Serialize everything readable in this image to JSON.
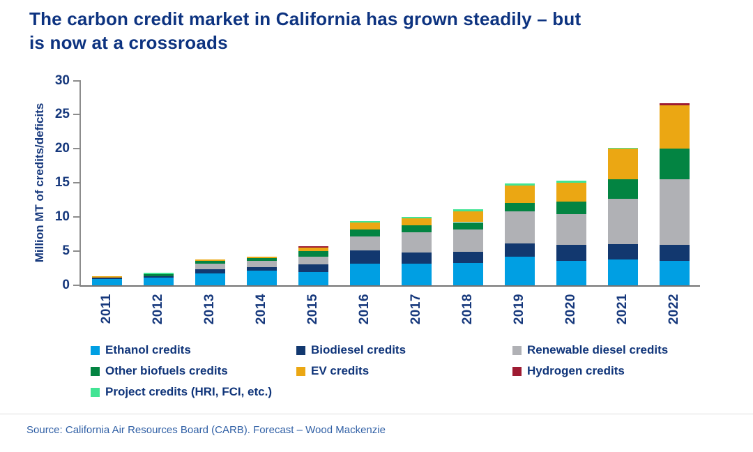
{
  "title": {
    "line1": "The carbon credit market in California has grown steadily – but",
    "line2": "is now at a crossroads",
    "full": "The carbon credit market in California has grown steadily – but is now at a crossroads"
  },
  "y_axis": {
    "label": "Million MT of credits/deficits",
    "ticks": [
      0,
      5,
      10,
      15,
      20,
      25,
      30
    ]
  },
  "source": "Source: California Air Resources Board (CARB). Forecast – Wood Mackenzie",
  "colors": {
    "title_text": "#0D3380",
    "axis_text": "#16387C",
    "legend_text": "#10357A",
    "source_text": "#2F5FA5",
    "axis_line": "#8C8C8C"
  },
  "legend": {
    "rows": [
      [
        {
          "label": "Ethanol credits",
          "series": "ethanol"
        },
        {
          "label": "Biodiesel credits",
          "series": "biodiesel"
        },
        {
          "label": "Renewable diesel credits",
          "series": "renewable_diesel"
        }
      ],
      [
        {
          "label": "Other biofuels credits",
          "series": "other_biofuels"
        },
        {
          "label": "EV credits",
          "series": "ev"
        },
        {
          "label": "Hydrogen credits",
          "series": "hydrogen"
        }
      ],
      [
        {
          "label": "Project credits (HRI, FCI, etc.)",
          "series": "project"
        }
      ]
    ]
  },
  "chart_data": {
    "type": "bar",
    "stacked": true,
    "title": "The carbon credit market in California has grown steadily – but is now at a crossroads",
    "xlabel": "",
    "ylabel": "Million MT of credits/deficits",
    "ylim": [
      0,
      30
    ],
    "grid": false,
    "legend_position": "bottom",
    "categories": [
      "2011",
      "2012",
      "2013",
      "2014",
      "2015",
      "2016",
      "2017",
      "2018",
      "2019",
      "2020",
      "2021",
      "2022"
    ],
    "series": [
      {
        "name": "Ethanol credits",
        "key": "ethanol",
        "color": "#009FE3",
        "values": [
          0.9,
          1.1,
          1.7,
          2.1,
          1.9,
          3.2,
          3.2,
          3.25,
          4.15,
          3.6,
          3.8,
          3.55
        ]
      },
      {
        "name": "Biodiesel credits",
        "key": "biodiesel",
        "color": "#12386F",
        "values": [
          0.2,
          0.2,
          0.65,
          0.6,
          1.2,
          1.9,
          1.65,
          1.7,
          1.95,
          2.3,
          2.25,
          2.4
        ]
      },
      {
        "name": "Renewable diesel credits",
        "key": "renewable_diesel",
        "color": "#B0B1B5",
        "values": [
          0,
          0,
          0.8,
          0.85,
          1.05,
          2.1,
          2.9,
          3.2,
          4.7,
          4.5,
          6.6,
          9.6
        ]
      },
      {
        "name": "Other biofuels credits",
        "key": "other_biofuels",
        "color": "#038442",
        "values": [
          0,
          0.3,
          0.45,
          0.4,
          0.9,
          0.95,
          1.0,
          1.1,
          1.3,
          1.85,
          2.85,
          4.5
        ]
      },
      {
        "name": "EV credits",
        "key": "ev",
        "color": "#EBA713",
        "values": [
          0.2,
          0,
          0.2,
          0.25,
          0.5,
          1.1,
          1.05,
          1.55,
          2.5,
          2.8,
          4.5,
          6.35
        ]
      },
      {
        "name": "Hydrogen credits",
        "key": "hydrogen",
        "color": "#9E1B32",
        "values": [
          0,
          0,
          0,
          0,
          0.2,
          0,
          0,
          0,
          0,
          0,
          0,
          0.3
        ]
      },
      {
        "name": "Project credits (HRI, FCI, etc.)",
        "key": "project",
        "color": "#42E494",
        "values": [
          0,
          0.2,
          0,
          0,
          0,
          0.2,
          0.2,
          0.3,
          0.3,
          0.25,
          0.15,
          0
        ]
      }
    ],
    "totals": [
      1.3,
      1.8,
      3.8,
      4.2,
      5.75,
      9.45,
      10.0,
      11.1,
      14.9,
      15.3,
      20.15,
      26.7
    ]
  }
}
